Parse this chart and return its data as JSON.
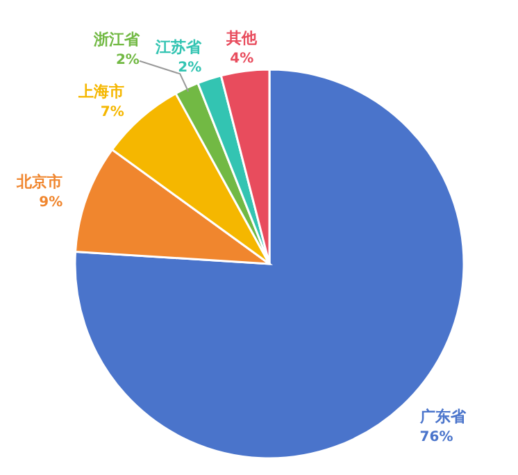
{
  "chart_data": {
    "type": "pie",
    "categories": [
      "广东省",
      "北京市",
      "上海市",
      "浙江省",
      "江苏省",
      "其他"
    ],
    "values": [
      76,
      9,
      7,
      2,
      2,
      4
    ],
    "colors": [
      "#4a74cb",
      "#f0862e",
      "#f5b700",
      "#72b944",
      "#33c4b2",
      "#e84c5d"
    ],
    "value_labels": [
      "76%",
      "9%",
      "7%",
      "2%",
      "2%",
      "4%"
    ]
  }
}
